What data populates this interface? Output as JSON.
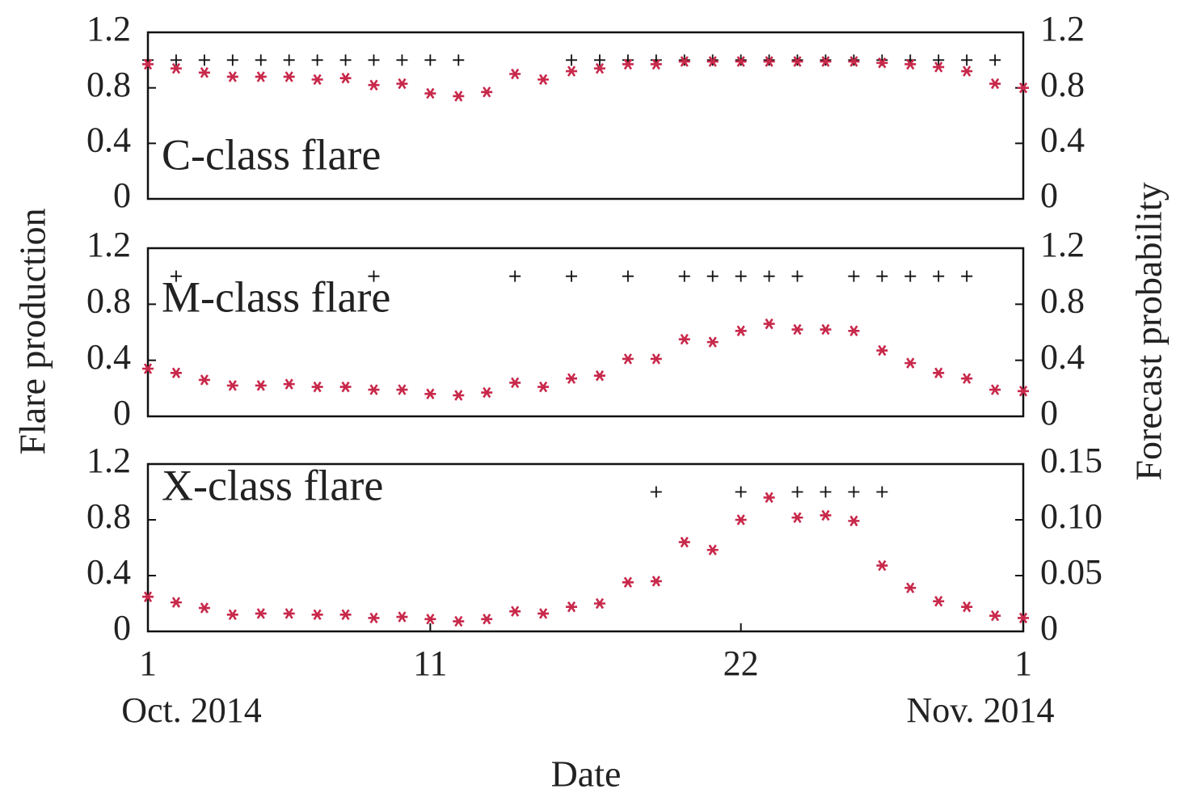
{
  "figure": {
    "ylabel": "Flare production",
    "y2label": "Forecast probability",
    "xlabel": "Date",
    "x_period_labels": [
      "Oct. 2014",
      "Nov. 2014"
    ]
  },
  "chart_data": [
    {
      "type": "scatter",
      "annotation": "C-class flare",
      "x": [
        1,
        2,
        3,
        4,
        5,
        6,
        7,
        8,
        9,
        10,
        11,
        12,
        13,
        14,
        15,
        16,
        17,
        18,
        19,
        20,
        21,
        22,
        23,
        24,
        25,
        26,
        27,
        28,
        29,
        30,
        31,
        32
      ],
      "xlim": [
        1,
        32
      ],
      "ylim": [
        0,
        1.2
      ],
      "yticks": [
        0,
        0.4,
        0.8,
        1.2
      ],
      "y2lim": [
        0,
        1.2
      ],
      "y2ticks": [
        0,
        0.4,
        0.8,
        1.2
      ],
      "series": [
        {
          "marker": "+",
          "color": "#111111",
          "values": [
            1,
            1,
            1,
            1,
            1,
            1,
            1,
            1,
            1,
            1,
            1,
            1,
            null,
            null,
            null,
            1,
            1,
            1,
            1,
            1,
            1,
            1,
            1,
            1,
            1,
            1,
            1,
            1,
            1,
            1,
            1,
            null
          ]
        },
        {
          "marker": "*",
          "color": "#c8284a",
          "axis": "y2",
          "values": [
            0.97,
            0.94,
            0.91,
            0.88,
            0.88,
            0.88,
            0.86,
            0.87,
            0.82,
            0.83,
            0.76,
            0.74,
            0.77,
            0.9,
            0.86,
            0.92,
            0.94,
            0.97,
            0.97,
            0.99,
            0.99,
            0.99,
            0.99,
            0.99,
            0.99,
            0.99,
            0.98,
            0.97,
            0.95,
            0.92,
            0.83,
            0.8
          ]
        }
      ]
    },
    {
      "type": "scatter",
      "annotation": "M-class flare",
      "x": [
        1,
        2,
        3,
        4,
        5,
        6,
        7,
        8,
        9,
        10,
        11,
        12,
        13,
        14,
        15,
        16,
        17,
        18,
        19,
        20,
        21,
        22,
        23,
        24,
        25,
        26,
        27,
        28,
        29,
        30,
        31,
        32
      ],
      "xlim": [
        1,
        32
      ],
      "ylim": [
        0,
        1.2
      ],
      "yticks": [
        0,
        0.4,
        0.8,
        1.2
      ],
      "y2lim": [
        0,
        1.2
      ],
      "y2ticks": [
        0,
        0.4,
        0.8,
        1.2
      ],
      "series": [
        {
          "marker": "+",
          "color": "#111111",
          "values": [
            null,
            1,
            null,
            null,
            null,
            null,
            null,
            null,
            1,
            null,
            null,
            null,
            null,
            1,
            null,
            1,
            null,
            1,
            null,
            1,
            1,
            1,
            1,
            1,
            null,
            1,
            1,
            1,
            1,
            1,
            null,
            null
          ]
        },
        {
          "marker": "*",
          "color": "#c8284a",
          "axis": "y2",
          "values": [
            0.34,
            0.31,
            0.26,
            0.22,
            0.22,
            0.23,
            0.21,
            0.21,
            0.19,
            0.19,
            0.16,
            0.15,
            0.17,
            0.24,
            0.21,
            0.27,
            0.29,
            0.41,
            0.41,
            0.55,
            0.53,
            0.61,
            0.66,
            0.62,
            0.62,
            0.61,
            0.47,
            0.38,
            0.31,
            0.27,
            0.19,
            0.18
          ]
        }
      ]
    },
    {
      "type": "scatter",
      "annotation": "X-class flare",
      "x": [
        1,
        2,
        3,
        4,
        5,
        6,
        7,
        8,
        9,
        10,
        11,
        12,
        13,
        14,
        15,
        16,
        17,
        18,
        19,
        20,
        21,
        22,
        23,
        24,
        25,
        26,
        27,
        28,
        29,
        30,
        31,
        32
      ],
      "xlim": [
        1,
        32
      ],
      "xticks": [
        1,
        11,
        22,
        {
          "value": 32,
          "label": "1"
        }
      ],
      "ylim": [
        0,
        1.2
      ],
      "yticks": [
        0,
        0.4,
        0.8,
        1.2
      ],
      "y2lim": [
        0,
        0.15
      ],
      "y2ticks": [
        0,
        0.05,
        {
          "value": 0.1,
          "label": "0.10"
        },
        0.15
      ],
      "series": [
        {
          "marker": "+",
          "color": "#111111",
          "values": [
            null,
            null,
            null,
            null,
            null,
            null,
            null,
            null,
            null,
            null,
            null,
            null,
            null,
            null,
            null,
            null,
            null,
            null,
            1,
            null,
            null,
            1,
            null,
            1,
            1,
            1,
            1,
            null,
            null,
            null,
            null,
            null
          ]
        },
        {
          "marker": "*",
          "color": "#c8284a",
          "axis": "y2",
          "values": [
            0.031,
            0.026,
            0.021,
            0.015,
            0.016,
            0.016,
            0.015,
            0.015,
            0.012,
            0.013,
            0.011,
            0.009,
            0.011,
            0.018,
            0.016,
            0.022,
            0.025,
            0.044,
            0.045,
            0.08,
            0.073,
            0.1,
            0.12,
            0.102,
            0.104,
            0.099,
            0.059,
            0.039,
            0.027,
            0.022,
            0.014,
            0.012
          ]
        }
      ]
    }
  ]
}
